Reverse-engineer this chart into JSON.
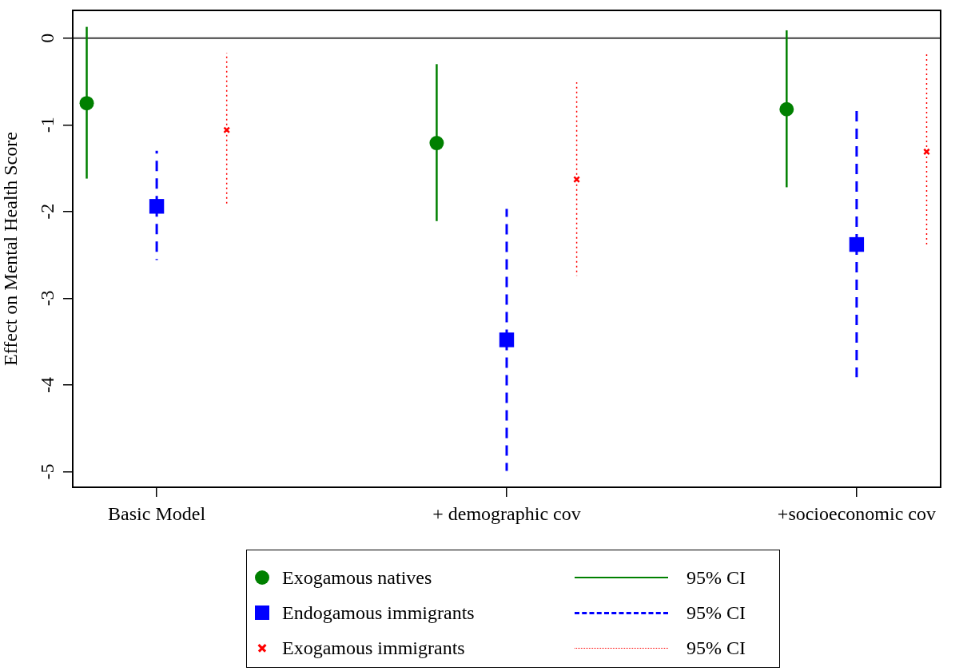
{
  "chart_data": {
    "type": "scatter",
    "ylabel": "Effect on Mental Health Score",
    "categories": [
      "Basic Model",
      "+ demographic cov",
      "+socioeconomic cov"
    ],
    "ylim": [
      -5.18,
      0.32
    ],
    "yticks": [
      0,
      -1,
      -2,
      -3,
      -4,
      -5
    ],
    "ref_lines": [
      {
        "axis": "y",
        "value": 0,
        "color": "#404040"
      }
    ],
    "legend": "bottom",
    "series": [
      {
        "name": "Exogamous natives",
        "color": "#008000",
        "marker": "circle",
        "line_style": "solid",
        "values": [
          -0.75,
          -1.21,
          -0.82
        ],
        "errors": [
          [
            -1.62,
            0.13
          ],
          [
            -2.11,
            -0.3
          ],
          [
            -1.72,
            0.09
          ]
        ]
      },
      {
        "type": "line",
        "name": "95% CI",
        "color": "#008000",
        "line_style": "solid",
        "values": [
          null,
          null,
          null
        ]
      },
      {
        "name": "Endogamous immigrants",
        "color": "#0000ff",
        "marker": "square",
        "line_style": "dashed",
        "values": [
          -1.94,
          -3.48,
          -2.38
        ],
        "errors": [
          [
            -2.56,
            -1.3
          ],
          [
            -4.99,
            -1.97
          ],
          [
            -3.91,
            -0.83
          ]
        ]
      },
      {
        "type": "line",
        "name": "95% CI",
        "color": "#0000ff",
        "line_style": "dashed",
        "values": [
          null,
          null,
          null
        ]
      },
      {
        "name": "Exogamous immigrants",
        "color": "#ff0000",
        "marker": "cross",
        "line_style": "dotted",
        "values": [
          -1.06,
          -1.63,
          -1.31
        ],
        "errors": [
          [
            -1.93,
            -0.17
          ],
          [
            -2.74,
            -0.51
          ],
          [
            -2.39,
            -0.17
          ]
        ]
      },
      {
        "type": "line",
        "name": "95% CI",
        "color": "#ff0000",
        "line_style": "dotted",
        "values": [
          null,
          null,
          null
        ]
      }
    ]
  }
}
